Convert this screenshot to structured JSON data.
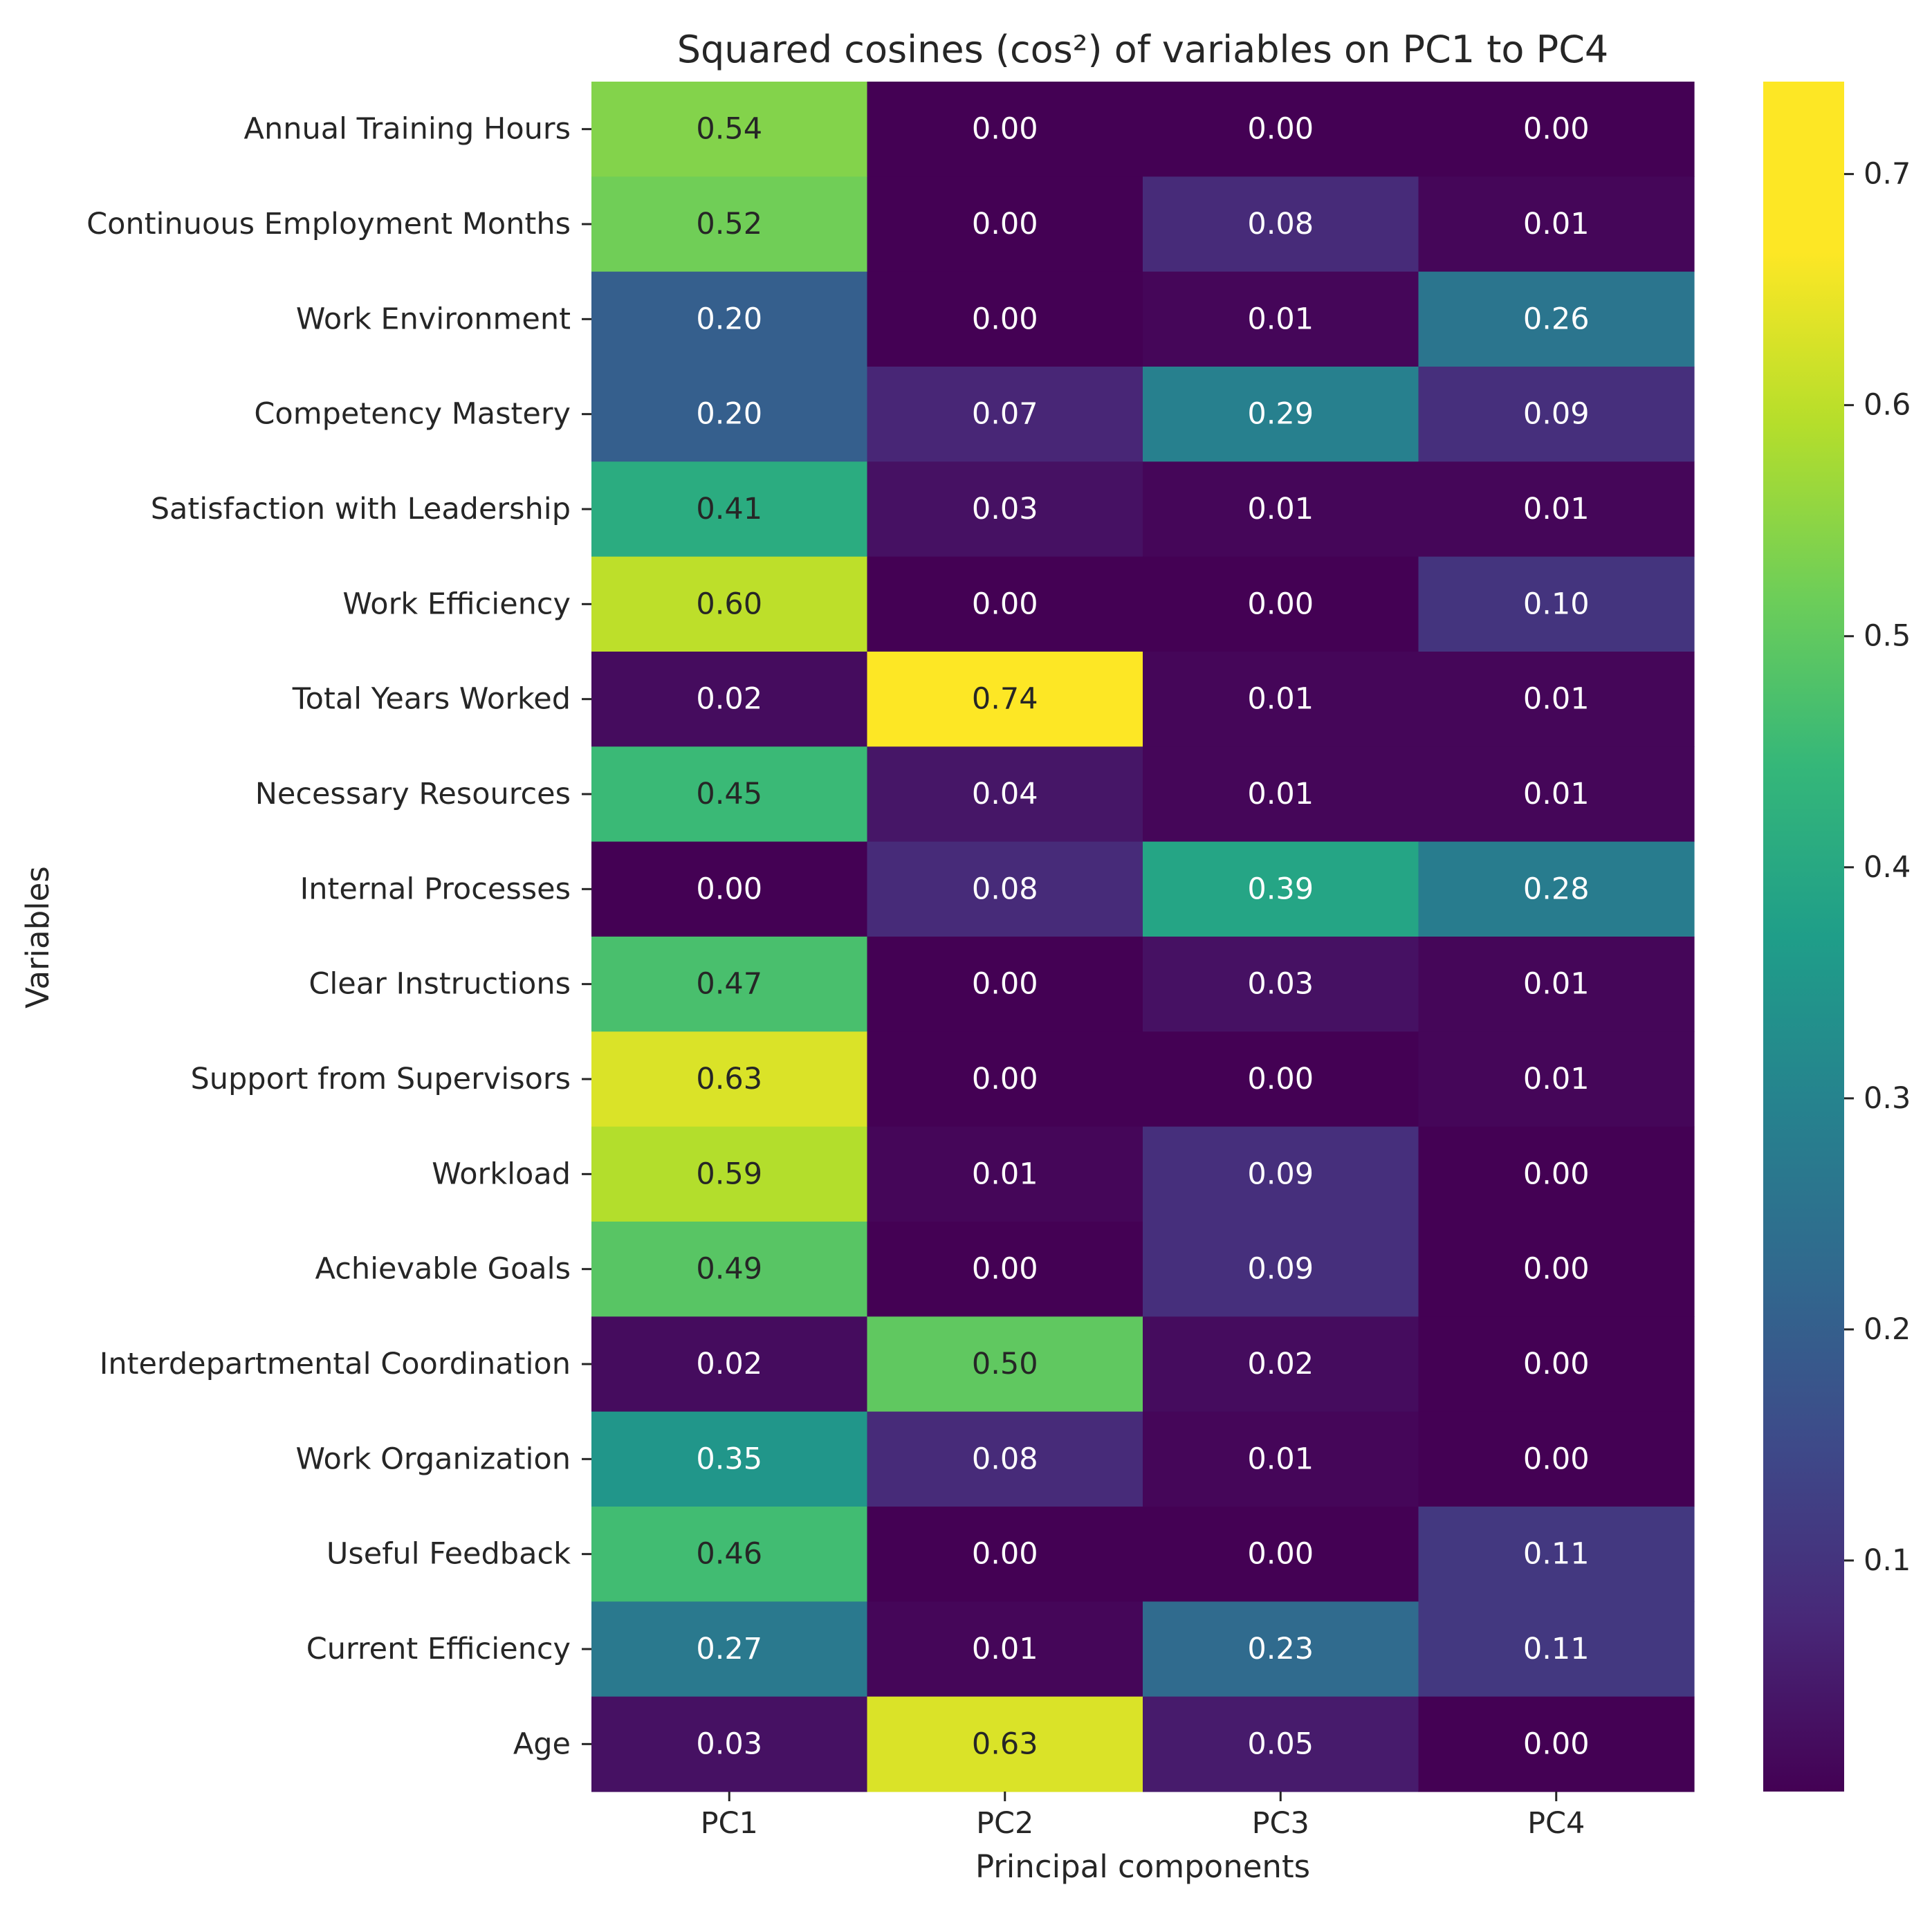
{
  "chart_data": {
    "type": "heatmap",
    "title": "Squared cosines (cos²) of variables on PC1 to PC4",
    "xlabel": "Principal components",
    "ylabel": "Variables",
    "columns": [
      "PC1",
      "PC2",
      "PC3",
      "PC4"
    ],
    "rows": [
      "Annual Training Hours",
      "Continuous Employment Months",
      "Work Environment",
      "Competency Mastery",
      "Satisfaction with Leadership",
      "Work Efficiency",
      "Total Years Worked",
      "Necessary Resources",
      "Internal Processes",
      "Clear Instructions",
      "Support from Supervisors",
      "Workload",
      "Achievable Goals",
      "Interdepartmental Coordination",
      "Work Organization",
      "Useful Feedback",
      "Current Efficiency",
      "Age"
    ],
    "values": [
      [
        0.54,
        0.0,
        0.0,
        0.0
      ],
      [
        0.52,
        0.0,
        0.08,
        0.01
      ],
      [
        0.2,
        0.0,
        0.01,
        0.26
      ],
      [
        0.2,
        0.07,
        0.29,
        0.09
      ],
      [
        0.41,
        0.03,
        0.01,
        0.01
      ],
      [
        0.6,
        0.0,
        0.0,
        0.1
      ],
      [
        0.02,
        0.74,
        0.01,
        0.01
      ],
      [
        0.45,
        0.04,
        0.01,
        0.01
      ],
      [
        0.0,
        0.08,
        0.39,
        0.28
      ],
      [
        0.47,
        0.0,
        0.03,
        0.01
      ],
      [
        0.63,
        0.0,
        0.0,
        0.01
      ],
      [
        0.59,
        0.01,
        0.09,
        0.0
      ],
      [
        0.49,
        0.0,
        0.09,
        0.0
      ],
      [
        0.02,
        0.5,
        0.02,
        0.0
      ],
      [
        0.35,
        0.08,
        0.01,
        0.0
      ],
      [
        0.46,
        0.0,
        0.0,
        0.11
      ],
      [
        0.27,
        0.01,
        0.23,
        0.11
      ],
      [
        0.03,
        0.63,
        0.05,
        0.0
      ]
    ],
    "colormap": "viridis",
    "colorbar": {
      "range": [
        0.0,
        0.74
      ],
      "ticks": [
        0.1,
        0.2,
        0.3,
        0.4,
        0.5,
        0.6,
        0.7
      ],
      "tick_labels": [
        "0.1",
        "0.2",
        "0.3",
        "0.4",
        "0.5",
        "0.6",
        "0.7"
      ]
    },
    "annotation_format": "0.00",
    "grid": false
  }
}
